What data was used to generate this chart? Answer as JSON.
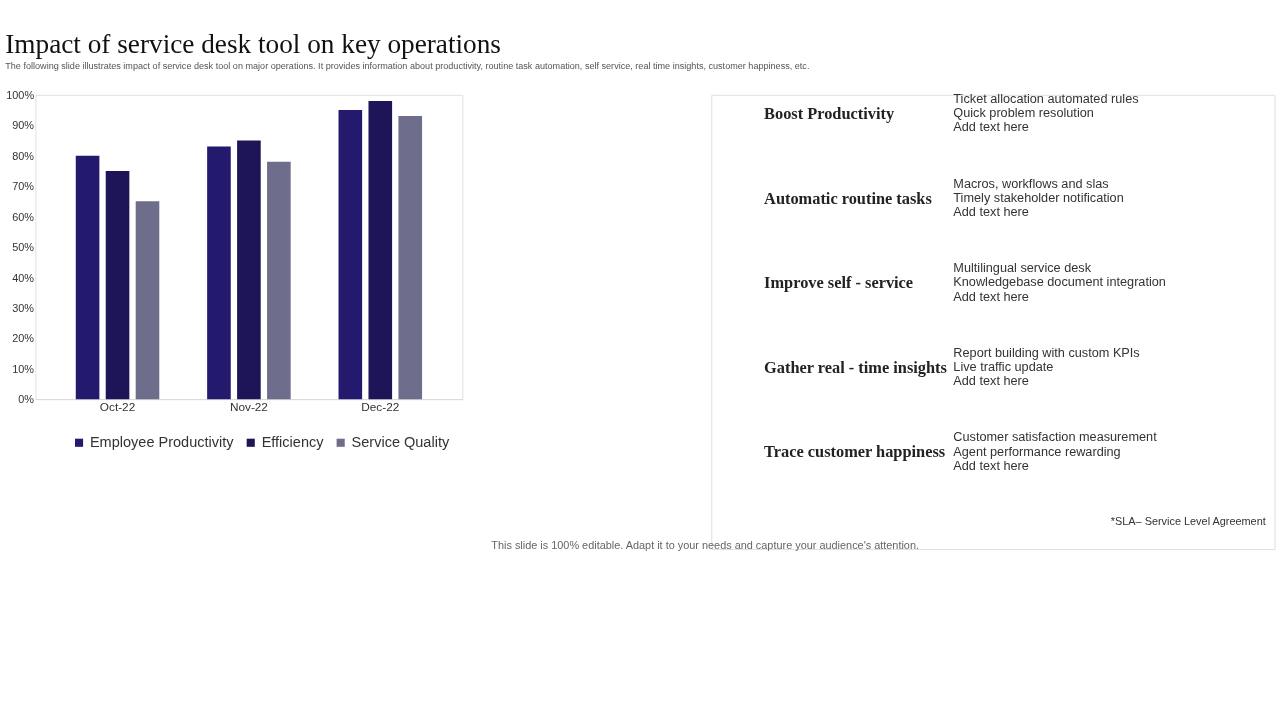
{
  "chart_data": {
    "type": "bar",
    "title": "Impact of service desk tool on key operations",
    "subtitle": "The following slide illustrates impact of service desk tool on major operations. It provides information about productivity, routine task automation, self service, real time insights, customer happiness, etc.",
    "categories": [
      "Oct-22",
      "Nov-22",
      "Dec-22"
    ],
    "series": [
      {
        "name": "Employee Productivity",
        "color": "#231a6e",
        "values": [
          80,
          83,
          95
        ]
      },
      {
        "name": "Efficiency",
        "color": "#1e1559",
        "values": [
          75,
          85,
          98
        ]
      },
      {
        "name": "Service Quality",
        "color": "#6f6d8c",
        "values": [
          65,
          78,
          93
        ]
      }
    ],
    "ylim": [
      0,
      100
    ],
    "yticks": [
      {
        "value": 0,
        "label": "0%"
      },
      {
        "value": 10,
        "label": "10%"
      },
      {
        "value": 20,
        "label": "20%"
      },
      {
        "value": 30,
        "label": "30%"
      },
      {
        "value": 40,
        "label": "40%"
      },
      {
        "value": 50,
        "label": "50%"
      },
      {
        "value": 60,
        "label": "60%"
      },
      {
        "value": 70,
        "label": "70%"
      },
      {
        "value": 80,
        "label": "80%"
      },
      {
        "value": 90,
        "label": "90%"
      },
      {
        "value": 100,
        "label": "100%"
      }
    ],
    "grid": false,
    "legend": "bottom",
    "annotations": [
      "Boost Productivity",
      "Ticket allocation automated rules",
      "Quick problem resolution",
      "Add text here",
      "Automatic routine tasks",
      "Macros, workflows and slas",
      "Timely stakeholder notification",
      "Add text here",
      "Improve self - service",
      "Multilingual  service desk",
      "Knowledgebase document integration",
      "Add text here",
      "Gather real - time insights",
      "Report building with custom KPIs",
      "Live traffic update",
      "Add text here",
      "Trace customer happiness",
      "Customer satisfaction measurement",
      "Agent performance rewarding",
      "Add text here",
      "*SLA– Service Level Agreement",
      "This slide is 100% editable. Adapt it to your needs and capture your audience's attention."
    ]
  }
}
